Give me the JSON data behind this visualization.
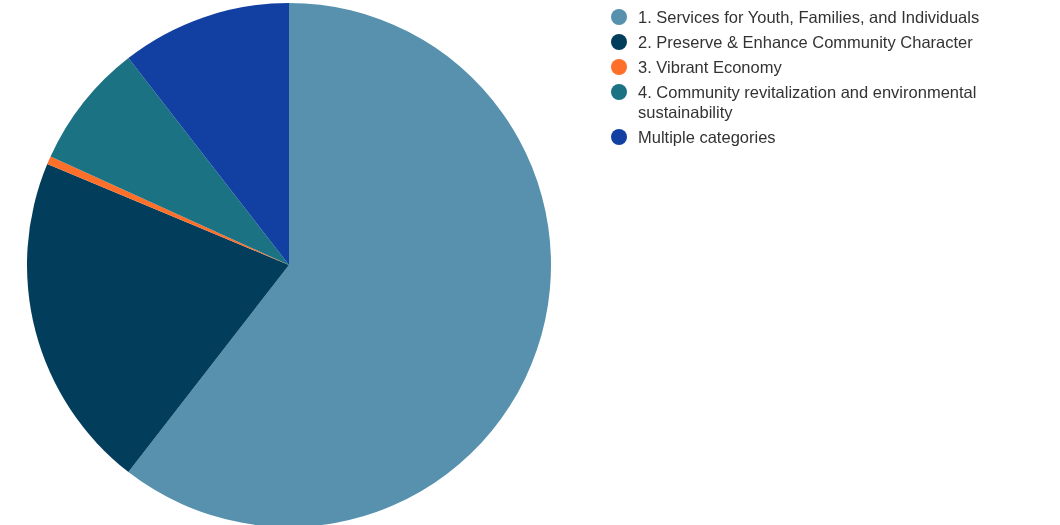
{
  "chart_data": {
    "type": "pie",
    "categories": [
      "1. Services for Youth, Families, and Individuals",
      "2. Preserve & Enhance Community Character",
      "3. Vibrant Economy",
      "4. Community revitalization and environmental sustainability",
      "Multiple categories"
    ],
    "values": [
      60.5,
      20.8,
      0.5,
      7.7,
      10.5
    ],
    "colors": [
      "#5791ad",
      "#023e5b",
      "#fe6f2a",
      "#1b7282",
      "#123fa2"
    ],
    "legend": "right"
  }
}
